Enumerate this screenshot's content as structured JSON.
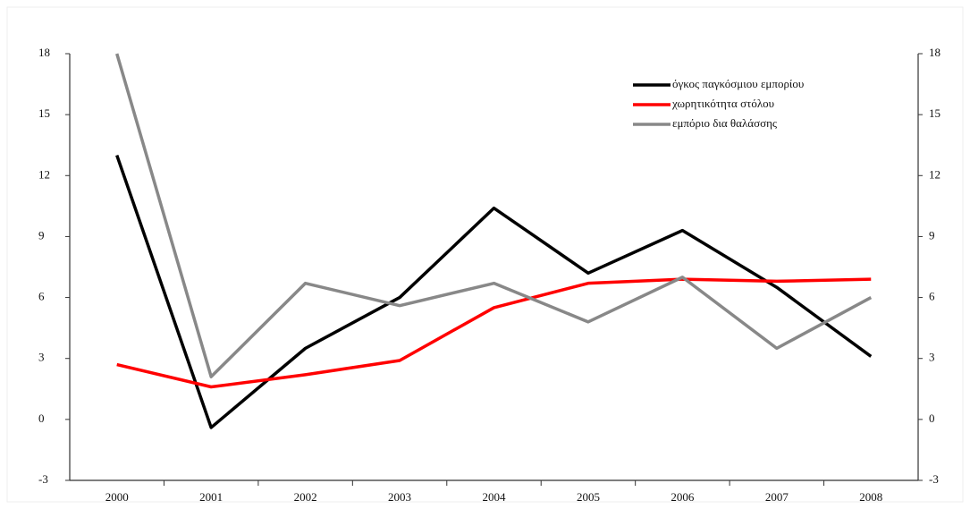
{
  "chart_data": {
    "type": "line",
    "categories": [
      "2000",
      "2001",
      "2002",
      "2003",
      "2004",
      "2005",
      "2006",
      "2007",
      "2008"
    ],
    "series": [
      {
        "name": "όγκος παγκόσμιου εμπορίου",
        "color": "#000000",
        "values": [
          13,
          -0.4,
          3.5,
          6,
          10.4,
          7.2,
          9.3,
          6.5,
          3.1
        ]
      },
      {
        "name": "χωρητικότητα στόλου",
        "color": "#ff0000",
        "values": [
          2.7,
          1.6,
          2.2,
          2.9,
          5.5,
          6.7,
          6.9,
          6.8,
          6.9
        ]
      },
      {
        "name": "εμπόριο δια θαλάσσης",
        "color": "#888888",
        "values": [
          18,
          2.1,
          6.7,
          5.6,
          6.7,
          4.8,
          7,
          3.5,
          6
        ]
      }
    ],
    "ylim": [
      -3,
      18
    ],
    "yticks": [
      -3,
      0,
      3,
      6,
      9,
      12,
      15,
      18
    ],
    "y2lim": [
      -3,
      18
    ],
    "y2ticks": [
      -3,
      0,
      3,
      6,
      9,
      12,
      15,
      18
    ],
    "legend": "top-right",
    "grid": false
  }
}
